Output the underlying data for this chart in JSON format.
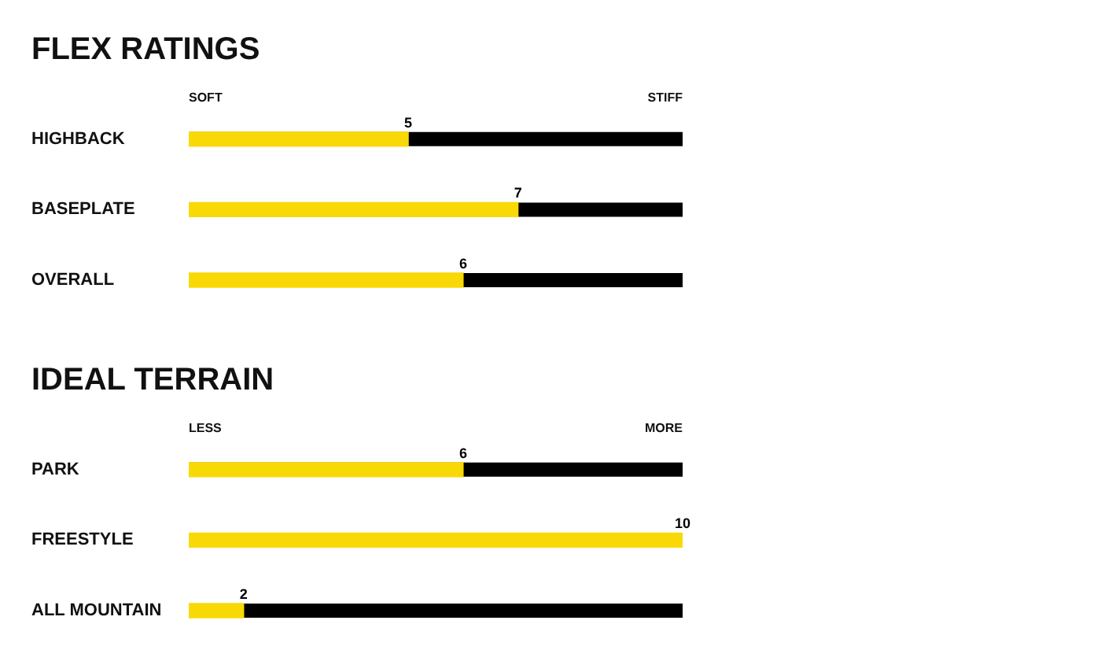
{
  "chart_data": [
    {
      "type": "bar",
      "orientation": "horizontal",
      "title": "FLEX RATINGS",
      "categories": [
        "HIGHBACK",
        "BASEPLATE",
        "OVERALL"
      ],
      "values": [
        5,
        7,
        6
      ],
      "color": "#f9d905",
      "xlim": [
        1,
        10
      ],
      "annotations": [
        "SOFT",
        "STIFF"
      ],
      "data_labels": true,
      "bands": [
        {
          "axis": "x",
          "from": 1,
          "to": 10,
          "label": null,
          "color": "#000000"
        }
      ]
    },
    {
      "type": "bar",
      "orientation": "horizontal",
      "title": "IDEAL TERRAIN",
      "categories": [
        "PARK",
        "FREESTYLE",
        "ALL MOUNTAIN"
      ],
      "values": [
        6,
        10,
        2
      ],
      "color": "#f9d905",
      "xlim": [
        1,
        10
      ],
      "annotations": [
        "LESS",
        "MORE"
      ],
      "data_labels": true,
      "bands": [
        {
          "axis": "x",
          "from": 1,
          "to": 10,
          "label": null,
          "color": "#000000"
        }
      ]
    }
  ]
}
